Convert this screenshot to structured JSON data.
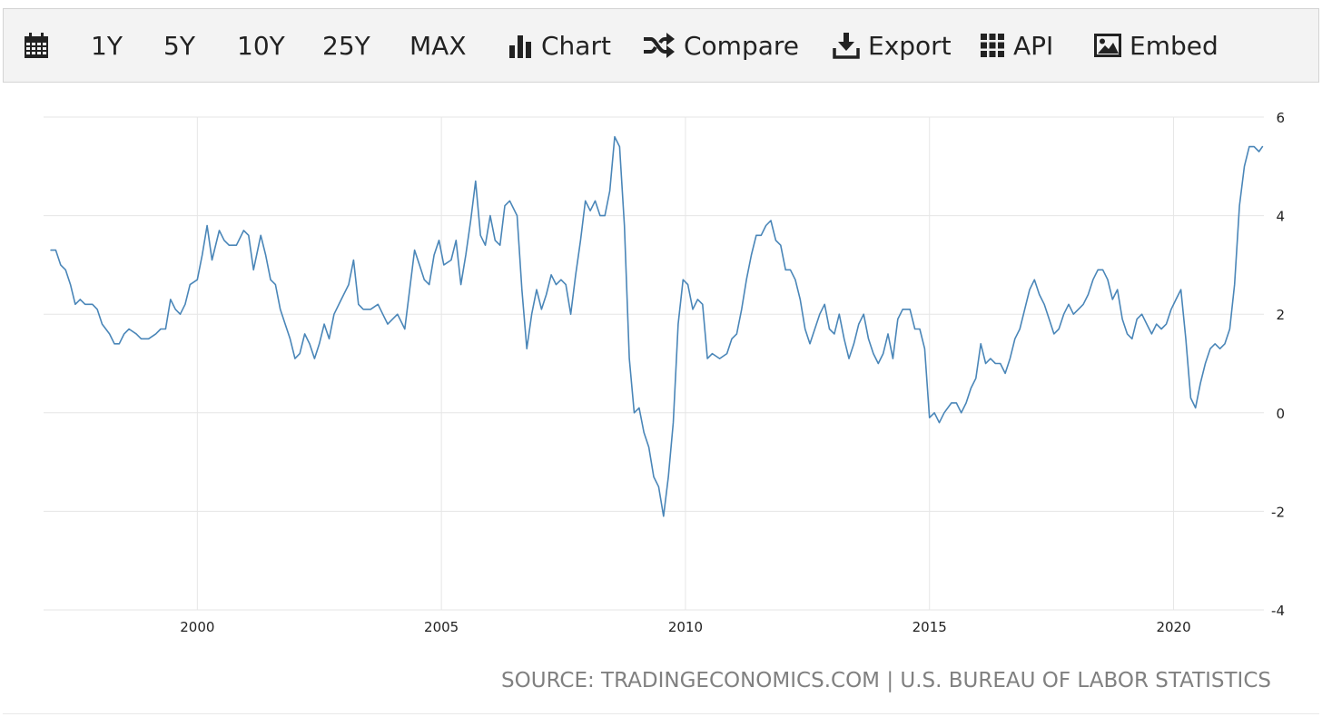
{
  "toolbar": {
    "calendar_icon": "calendar-icon",
    "range_1y": "1Y",
    "range_5y": "5Y",
    "range_10y": "10Y",
    "range_25y": "25Y",
    "range_max": "MAX",
    "chart_label": "Chart",
    "chart_icon": "bar-chart-icon",
    "compare_label": "Compare",
    "compare_icon": "shuffle-icon",
    "export_label": "Export",
    "export_icon": "download-icon",
    "api_label": "API",
    "api_icon": "grid-icon",
    "embed_label": "Embed",
    "embed_icon": "image-icon"
  },
  "source_text": "SOURCE: TRADINGECONOMICS.COM | U.S. BUREAU OF LABOR STATISTICS",
  "colors": {
    "line": "#4a86b8",
    "grid": "#e6e6e6",
    "toolbar_bg": "#f3f3f3",
    "source_text": "#808080"
  },
  "chart_data": {
    "type": "line",
    "title": "",
    "xlabel": "",
    "ylabel": "",
    "x_ticks": [
      "2000",
      "2005",
      "2010",
      "2015",
      "2020"
    ],
    "y_ticks": [
      6,
      4,
      2,
      0,
      -2,
      -4
    ],
    "ylim": [
      -4,
      6
    ],
    "xlim": [
      1996.85,
      2021.85
    ],
    "grid": true,
    "y_axis_side": "right",
    "series": [
      {
        "values": [
          [
            1997.0,
            3.3
          ],
          [
            1997.1,
            3.3
          ],
          [
            1997.2,
            3.0
          ],
          [
            1997.3,
            2.9
          ],
          [
            1997.4,
            2.6
          ],
          [
            1997.5,
            2.2
          ],
          [
            1997.6,
            2.3
          ],
          [
            1997.7,
            2.2
          ],
          [
            1997.85,
            2.2
          ],
          [
            1997.95,
            2.1
          ],
          [
            1998.05,
            1.8
          ],
          [
            1998.2,
            1.6
          ],
          [
            1998.3,
            1.4
          ],
          [
            1998.4,
            1.4
          ],
          [
            1998.5,
            1.6
          ],
          [
            1998.6,
            1.7
          ],
          [
            1998.75,
            1.6
          ],
          [
            1998.85,
            1.5
          ],
          [
            1999.0,
            1.5
          ],
          [
            1999.15,
            1.6
          ],
          [
            1999.25,
            1.7
          ],
          [
            1999.35,
            1.7
          ],
          [
            1999.45,
            2.3
          ],
          [
            1999.55,
            2.1
          ],
          [
            1999.65,
            2.0
          ],
          [
            1999.75,
            2.2
          ],
          [
            1999.85,
            2.6
          ],
          [
            2000.0,
            2.7
          ],
          [
            2000.1,
            3.2
          ],
          [
            2000.2,
            3.8
          ],
          [
            2000.3,
            3.1
          ],
          [
            2000.45,
            3.7
          ],
          [
            2000.55,
            3.5
          ],
          [
            2000.65,
            3.4
          ],
          [
            2000.8,
            3.4
          ],
          [
            2000.95,
            3.7
          ],
          [
            2001.05,
            3.6
          ],
          [
            2001.15,
            2.9
          ],
          [
            2001.3,
            3.6
          ],
          [
            2001.4,
            3.2
          ],
          [
            2001.5,
            2.7
          ],
          [
            2001.6,
            2.6
          ],
          [
            2001.7,
            2.1
          ],
          [
            2001.8,
            1.8
          ],
          [
            2001.9,
            1.5
          ],
          [
            2002.0,
            1.1
          ],
          [
            2002.1,
            1.2
          ],
          [
            2002.2,
            1.6
          ],
          [
            2002.3,
            1.4
          ],
          [
            2002.4,
            1.1
          ],
          [
            2002.5,
            1.4
          ],
          [
            2002.6,
            1.8
          ],
          [
            2002.7,
            1.5
          ],
          [
            2002.8,
            2.0
          ],
          [
            2002.95,
            2.3
          ],
          [
            2003.1,
            2.6
          ],
          [
            2003.2,
            3.1
          ],
          [
            2003.3,
            2.2
          ],
          [
            2003.4,
            2.1
          ],
          [
            2003.55,
            2.1
          ],
          [
            2003.7,
            2.2
          ],
          [
            2003.8,
            2.0
          ],
          [
            2003.9,
            1.8
          ],
          [
            2004.0,
            1.9
          ],
          [
            2004.1,
            2.0
          ],
          [
            2004.25,
            1.7
          ],
          [
            2004.35,
            2.5
          ],
          [
            2004.45,
            3.3
          ],
          [
            2004.55,
            3.0
          ],
          [
            2004.65,
            2.7
          ],
          [
            2004.75,
            2.6
          ],
          [
            2004.85,
            3.2
          ],
          [
            2004.95,
            3.5
          ],
          [
            2005.05,
            3.0
          ],
          [
            2005.2,
            3.1
          ],
          [
            2005.3,
            3.5
          ],
          [
            2005.4,
            2.6
          ],
          [
            2005.5,
            3.2
          ],
          [
            2005.6,
            3.9
          ],
          [
            2005.7,
            4.7
          ],
          [
            2005.8,
            3.6
          ],
          [
            2005.9,
            3.4
          ],
          [
            2006.0,
            4.0
          ],
          [
            2006.1,
            3.5
          ],
          [
            2006.2,
            3.4
          ],
          [
            2006.3,
            4.2
          ],
          [
            2006.4,
            4.3
          ],
          [
            2006.55,
            4.0
          ],
          [
            2006.65,
            2.5
          ],
          [
            2006.75,
            1.3
          ],
          [
            2006.85,
            2.0
          ],
          [
            2006.95,
            2.5
          ],
          [
            2007.05,
            2.1
          ],
          [
            2007.15,
            2.4
          ],
          [
            2007.25,
            2.8
          ],
          [
            2007.35,
            2.6
          ],
          [
            2007.45,
            2.7
          ],
          [
            2007.55,
            2.6
          ],
          [
            2007.65,
            2.0
          ],
          [
            2007.75,
            2.8
          ],
          [
            2007.85,
            3.5
          ],
          [
            2007.95,
            4.3
          ],
          [
            2008.05,
            4.1
          ],
          [
            2008.15,
            4.3
          ],
          [
            2008.25,
            4.0
          ],
          [
            2008.35,
            4.0
          ],
          [
            2008.45,
            4.5
          ],
          [
            2008.55,
            5.6
          ],
          [
            2008.65,
            5.4
          ],
          [
            2008.75,
            3.8
          ],
          [
            2008.85,
            1.1
          ],
          [
            2008.95,
            0.0
          ],
          [
            2009.05,
            0.1
          ],
          [
            2009.15,
            -0.4
          ],
          [
            2009.25,
            -0.7
          ],
          [
            2009.35,
            -1.3
          ],
          [
            2009.45,
            -1.5
          ],
          [
            2009.55,
            -2.1
          ],
          [
            2009.65,
            -1.3
          ],
          [
            2009.75,
            -0.2
          ],
          [
            2009.85,
            1.8
          ],
          [
            2009.95,
            2.7
          ],
          [
            2010.05,
            2.6
          ],
          [
            2010.15,
            2.1
          ],
          [
            2010.25,
            2.3
          ],
          [
            2010.35,
            2.2
          ],
          [
            2010.45,
            1.1
          ],
          [
            2010.55,
            1.2
          ],
          [
            2010.7,
            1.1
          ],
          [
            2010.85,
            1.2
          ],
          [
            2010.95,
            1.5
          ],
          [
            2011.05,
            1.6
          ],
          [
            2011.15,
            2.1
          ],
          [
            2011.25,
            2.7
          ],
          [
            2011.35,
            3.2
          ],
          [
            2011.45,
            3.6
          ],
          [
            2011.55,
            3.6
          ],
          [
            2011.65,
            3.8
          ],
          [
            2011.75,
            3.9
          ],
          [
            2011.85,
            3.5
          ],
          [
            2011.95,
            3.4
          ],
          [
            2012.05,
            2.9
          ],
          [
            2012.15,
            2.9
          ],
          [
            2012.25,
            2.7
          ],
          [
            2012.35,
            2.3
          ],
          [
            2012.45,
            1.7
          ],
          [
            2012.55,
            1.4
          ],
          [
            2012.65,
            1.7
          ],
          [
            2012.75,
            2.0
          ],
          [
            2012.85,
            2.2
          ],
          [
            2012.95,
            1.7
          ],
          [
            2013.05,
            1.6
          ],
          [
            2013.15,
            2.0
          ],
          [
            2013.25,
            1.5
          ],
          [
            2013.35,
            1.1
          ],
          [
            2013.45,
            1.4
          ],
          [
            2013.55,
            1.8
          ],
          [
            2013.65,
            2.0
          ],
          [
            2013.75,
            1.5
          ],
          [
            2013.85,
            1.2
          ],
          [
            2013.95,
            1.0
          ],
          [
            2014.05,
            1.2
          ],
          [
            2014.15,
            1.6
          ],
          [
            2014.25,
            1.1
          ],
          [
            2014.35,
            1.9
          ],
          [
            2014.45,
            2.1
          ],
          [
            2014.6,
            2.1
          ],
          [
            2014.7,
            1.7
          ],
          [
            2014.8,
            1.7
          ],
          [
            2014.9,
            1.3
          ],
          [
            2015.0,
            -0.1
          ],
          [
            2015.1,
            0.0
          ],
          [
            2015.2,
            -0.2
          ],
          [
            2015.3,
            0.0
          ],
          [
            2015.45,
            0.2
          ],
          [
            2015.55,
            0.2
          ],
          [
            2015.65,
            0.0
          ],
          [
            2015.75,
            0.2
          ],
          [
            2015.85,
            0.5
          ],
          [
            2015.95,
            0.7
          ],
          [
            2016.05,
            1.4
          ],
          [
            2016.15,
            1.0
          ],
          [
            2016.25,
            1.1
          ],
          [
            2016.35,
            1.0
          ],
          [
            2016.45,
            1.0
          ],
          [
            2016.55,
            0.8
          ],
          [
            2016.65,
            1.1
          ],
          [
            2016.75,
            1.5
          ],
          [
            2016.85,
            1.7
          ],
          [
            2016.95,
            2.1
          ],
          [
            2017.05,
            2.5
          ],
          [
            2017.15,
            2.7
          ],
          [
            2017.25,
            2.4
          ],
          [
            2017.35,
            2.2
          ],
          [
            2017.45,
            1.9
          ],
          [
            2017.55,
            1.6
          ],
          [
            2017.65,
            1.7
          ],
          [
            2017.75,
            2.0
          ],
          [
            2017.85,
            2.2
          ],
          [
            2017.95,
            2.0
          ],
          [
            2018.05,
            2.1
          ],
          [
            2018.15,
            2.2
          ],
          [
            2018.25,
            2.4
          ],
          [
            2018.35,
            2.7
          ],
          [
            2018.45,
            2.9
          ],
          [
            2018.55,
            2.9
          ],
          [
            2018.65,
            2.7
          ],
          [
            2018.75,
            2.3
          ],
          [
            2018.85,
            2.5
          ],
          [
            2018.95,
            1.9
          ],
          [
            2019.05,
            1.6
          ],
          [
            2019.15,
            1.5
          ],
          [
            2019.25,
            1.9
          ],
          [
            2019.35,
            2.0
          ],
          [
            2019.45,
            1.8
          ],
          [
            2019.55,
            1.6
          ],
          [
            2019.65,
            1.8
          ],
          [
            2019.75,
            1.7
          ],
          [
            2019.85,
            1.8
          ],
          [
            2019.95,
            2.1
          ],
          [
            2020.05,
            2.3
          ],
          [
            2020.15,
            2.5
          ],
          [
            2020.25,
            1.5
          ],
          [
            2020.35,
            0.3
          ],
          [
            2020.45,
            0.1
          ],
          [
            2020.55,
            0.6
          ],
          [
            2020.65,
            1.0
          ],
          [
            2020.75,
            1.3
          ],
          [
            2020.85,
            1.4
          ],
          [
            2020.95,
            1.3
          ],
          [
            2021.05,
            1.4
          ],
          [
            2021.15,
            1.7
          ],
          [
            2021.25,
            2.6
          ],
          [
            2021.35,
            4.2
          ],
          [
            2021.45,
            5.0
          ],
          [
            2021.55,
            5.4
          ],
          [
            2021.65,
            5.4
          ],
          [
            2021.75,
            5.3
          ],
          [
            2021.82,
            5.4
          ]
        ]
      }
    ]
  }
}
